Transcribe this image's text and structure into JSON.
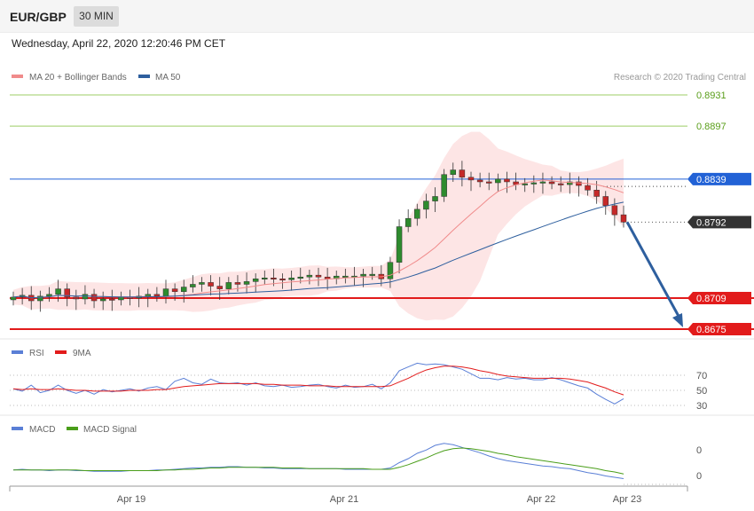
{
  "header": {
    "symbol": "EUR/GBP",
    "timeframe": "30 MIN",
    "datetime": "Wednesday, April 22, 2020 12:20:46 PM CET"
  },
  "colors": {
    "ma20": "#f08b8b",
    "ma50": "#2e5f9e",
    "bollinger_fill": "#fde0e0",
    "candle_up": "#2e8b2e",
    "candle_down": "#c62828",
    "resistance_green": "#9ccc65",
    "resistance_green_text": "#5a9e1a",
    "pivot_blue": "#2262d6",
    "support_red": "#e21b1b",
    "current_price_bg": "#333333",
    "arrow": "#2e5f9e",
    "rsi": "#5a7fd6",
    "rsi_ma": "#e21b1b",
    "macd": "#5a7fd6",
    "macd_signal": "#4a9e1a"
  },
  "chart_data": [
    {
      "type": "candlestick",
      "panel": "price",
      "legend": [
        {
          "label": "MA 20 + Bollinger Bands",
          "color": "#f08b8b"
        },
        {
          "label": "MA 50",
          "color": "#2e5f9e"
        }
      ],
      "credit": "Research © 2020 Trading Central",
      "levels": [
        {
          "value": "0.8931",
          "kind": "resistance"
        },
        {
          "value": "0.8897",
          "kind": "resistance"
        },
        {
          "value": "0.8839",
          "kind": "pivot"
        },
        {
          "value": "0.8792",
          "kind": "current"
        },
        {
          "value": "0.8709",
          "kind": "support"
        },
        {
          "value": "0.8675",
          "kind": "support"
        }
      ],
      "x_ticks": [
        "Apr 19",
        "Apr 21",
        "Apr 22",
        "Apr 23"
      ],
      "close_series_approx": [
        0.871,
        0.8712,
        0.8706,
        0.8711,
        0.8713,
        0.8719,
        0.871,
        0.8708,
        0.8713,
        0.8706,
        0.8708,
        0.8707,
        0.871,
        0.8709,
        0.8711,
        0.8713,
        0.8711,
        0.8719,
        0.8716,
        0.8721,
        0.8724,
        0.8726,
        0.8722,
        0.8719,
        0.8726,
        0.8724,
        0.8727,
        0.873,
        0.8731,
        0.873,
        0.8729,
        0.8731,
        0.8732,
        0.8734,
        0.8732,
        0.873,
        0.8733,
        0.8733,
        0.8733,
        0.8735,
        0.8735,
        0.873,
        0.8748,
        0.8787,
        0.8796,
        0.8806,
        0.8815,
        0.882,
        0.8844,
        0.8849,
        0.8841,
        0.8838,
        0.8836,
        0.8835,
        0.8839,
        0.8836,
        0.8833,
        0.8834,
        0.8835,
        0.8836,
        0.8834,
        0.8833,
        0.8836,
        0.8832,
        0.8827,
        0.882,
        0.881,
        0.88,
        0.8792
      ],
      "forecast_arrow_to": "0.8675"
    },
    {
      "type": "line",
      "panel": "rsi",
      "legend": [
        {
          "label": "RSI",
          "color": "#5a7fd6"
        },
        {
          "label": "9MA",
          "color": "#e21b1b"
        }
      ],
      "y_ticks": [
        "70",
        "50",
        "30"
      ],
      "series": [
        {
          "name": "RSI",
          "values": [
            52,
            49,
            57,
            47,
            50,
            57,
            50,
            46,
            50,
            45,
            51,
            48,
            50,
            52,
            49,
            53,
            55,
            51,
            62,
            66,
            60,
            58,
            65,
            60,
            59,
            60,
            57,
            60,
            56,
            55,
            57,
            54,
            55,
            57,
            58,
            55,
            53,
            57,
            54,
            55,
            58,
            52,
            60,
            76,
            81,
            86,
            84,
            85,
            84,
            81,
            78,
            72,
            66,
            66,
            64,
            67,
            65,
            66,
            64,
            64,
            67,
            64,
            60,
            56,
            53,
            45,
            38,
            32,
            39
          ]
        },
        {
          "name": "9MA",
          "values": [
            52,
            51,
            52,
            51,
            51,
            52,
            51,
            50,
            50,
            49,
            49,
            49,
            49,
            50,
            50,
            50,
            51,
            51,
            53,
            55,
            56,
            57,
            58,
            59,
            59,
            59,
            59,
            59,
            58,
            58,
            57,
            57,
            57,
            56,
            56,
            56,
            55,
            55,
            55,
            55,
            55,
            55,
            56,
            61,
            66,
            72,
            77,
            80,
            82,
            82,
            81,
            79,
            76,
            74,
            71,
            69,
            68,
            67,
            66,
            66,
            66,
            66,
            65,
            63,
            61,
            57,
            53,
            48,
            44
          ]
        }
      ]
    },
    {
      "type": "line",
      "panel": "macd",
      "legend": [
        {
          "label": "MACD",
          "color": "#5a7fd6"
        },
        {
          "label": "MACD Signal",
          "color": "#4a9e1a"
        }
      ],
      "y_ticks": [
        "0",
        "0"
      ],
      "series": [
        {
          "name": "MACD",
          "values": [
            3,
            4,
            3,
            3,
            2,
            3,
            3,
            2,
            2,
            1,
            1,
            1,
            1,
            2,
            2,
            2,
            3,
            3,
            4,
            5,
            6,
            6,
            7,
            7,
            8,
            8,
            7,
            7,
            6,
            6,
            5,
            5,
            5,
            5,
            5,
            5,
            5,
            4,
            4,
            4,
            4,
            4,
            6,
            14,
            20,
            28,
            33,
            40,
            43,
            41,
            37,
            33,
            29,
            24,
            20,
            17,
            15,
            13,
            11,
            9,
            8,
            6,
            5,
            2,
            -1,
            -3,
            -6,
            -8,
            -10
          ]
        },
        {
          "name": "MACD Signal",
          "values": [
            3,
            3,
            3,
            3,
            3,
            3,
            3,
            3,
            2,
            2,
            2,
            2,
            2,
            2,
            2,
            2,
            2,
            3,
            3,
            4,
            4,
            5,
            6,
            6,
            7,
            7,
            7,
            7,
            7,
            7,
            6,
            6,
            6,
            5,
            5,
            5,
            5,
            5,
            5,
            5,
            4,
            4,
            4,
            7,
            11,
            16,
            21,
            27,
            32,
            35,
            36,
            35,
            33,
            31,
            28,
            26,
            23,
            21,
            19,
            17,
            15,
            13,
            11,
            9,
            7,
            5,
            2,
            0,
            -3
          ]
        }
      ]
    }
  ]
}
